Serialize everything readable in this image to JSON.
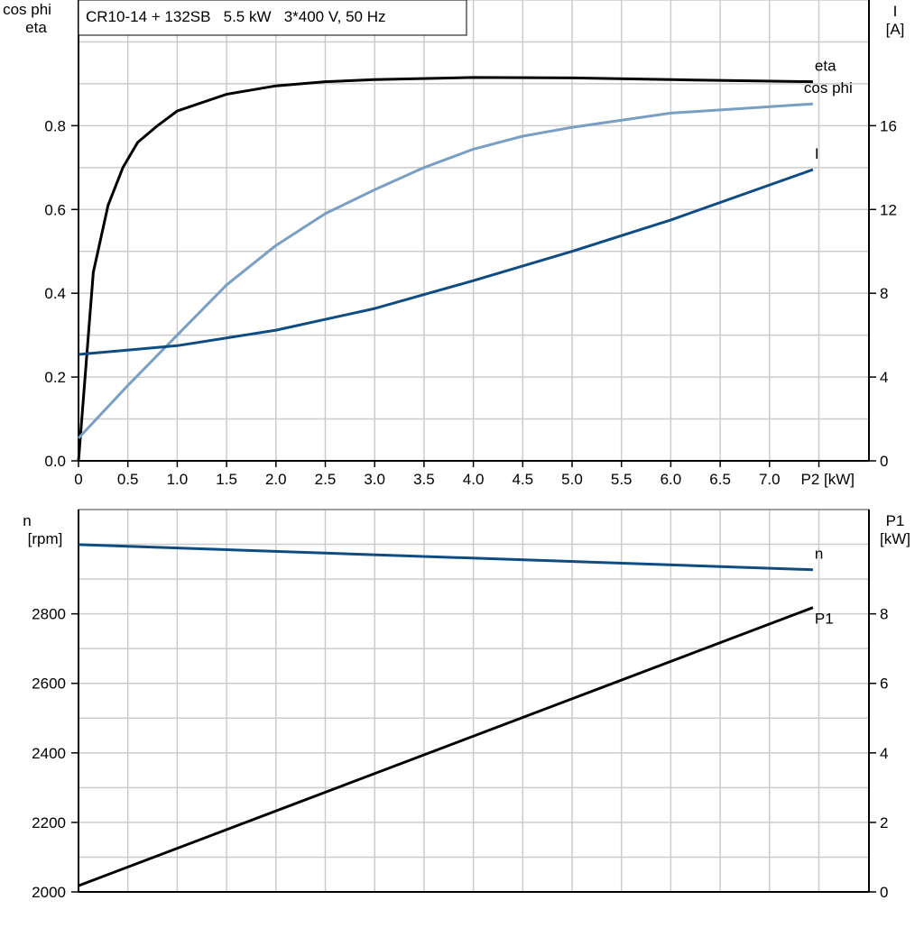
{
  "chart_data": [
    {
      "type": "line",
      "title": "CR10-14 + 132SB   5.5 kW   3*400 V, 50 Hz",
      "xlabel": "P2 [kW]",
      "xlim": [
        0,
        7.5
      ],
      "x_ticks": [
        "0",
        "0.5",
        "1.0",
        "1.5",
        "2.0",
        "2.5",
        "3.0",
        "3.5",
        "4.0",
        "4.5",
        "5.0",
        "5.5",
        "6.0",
        "6.5",
        "7.0",
        "P2 [kW]"
      ],
      "ylabel_left": [
        "cos phi",
        "eta"
      ],
      "ylim_left": [
        0,
        1.1
      ],
      "y_ticks_left": [
        "0.0",
        "0.2",
        "0.4",
        "0.6",
        "0.8"
      ],
      "ylabel_right": [
        "I",
        "[A]"
      ],
      "ylim_right": [
        0,
        22
      ],
      "y_ticks_right": [
        "0",
        "4",
        "8",
        "12",
        "16"
      ],
      "grid": true,
      "series": [
        {
          "name": "eta",
          "axis": "left",
          "color": "#000000",
          "x": [
            0,
            0.15,
            0.3,
            0.45,
            0.6,
            0.8,
            1.0,
            1.5,
            2.0,
            2.5,
            3.0,
            4.0,
            5.0,
            6.0,
            7.44
          ],
          "y": [
            0,
            0.45,
            0.61,
            0.7,
            0.76,
            0.8,
            0.835,
            0.875,
            0.895,
            0.905,
            0.91,
            0.915,
            0.914,
            0.91,
            0.905
          ]
        },
        {
          "name": "cos phi",
          "axis": "left",
          "color": "#7a9fc2",
          "x": [
            0,
            0.5,
            1.0,
            1.5,
            2.0,
            2.5,
            3.0,
            3.5,
            4.0,
            4.5,
            5.0,
            6.0,
            7.44
          ],
          "y": [
            0.054,
            0.18,
            0.3,
            0.42,
            0.514,
            0.59,
            0.647,
            0.7,
            0.744,
            0.775,
            0.796,
            0.83,
            0.852
          ]
        },
        {
          "name": "I",
          "axis": "right",
          "color": "#0f4c81",
          "x": [
            0,
            1.0,
            2.0,
            3.0,
            4.0,
            5.0,
            6.0,
            7.44
          ],
          "y": [
            5.08,
            5.5,
            6.24,
            7.27,
            8.6,
            10.0,
            11.5,
            13.9
          ]
        }
      ]
    },
    {
      "type": "line",
      "xlim": [
        0,
        7.5
      ],
      "ylabel_left": [
        "n",
        "[rpm]"
      ],
      "ylim_left": [
        2000,
        3100
      ],
      "y_ticks_left": [
        "2000",
        "2200",
        "2400",
        "2600",
        "2800"
      ],
      "ylabel_right": [
        "P1",
        "[kW]"
      ],
      "ylim_right": [
        0,
        11
      ],
      "y_ticks_right": [
        "0",
        "2",
        "4",
        "6",
        "8"
      ],
      "grid": true,
      "series": [
        {
          "name": "n",
          "axis": "left",
          "color": "#0f4c81",
          "x": [
            0,
            7.44
          ],
          "y": [
            2999,
            2927
          ]
        },
        {
          "name": "P1",
          "axis": "right",
          "color": "#000000",
          "x": [
            0,
            7.44
          ],
          "y": [
            0.18,
            8.18
          ]
        }
      ]
    }
  ]
}
